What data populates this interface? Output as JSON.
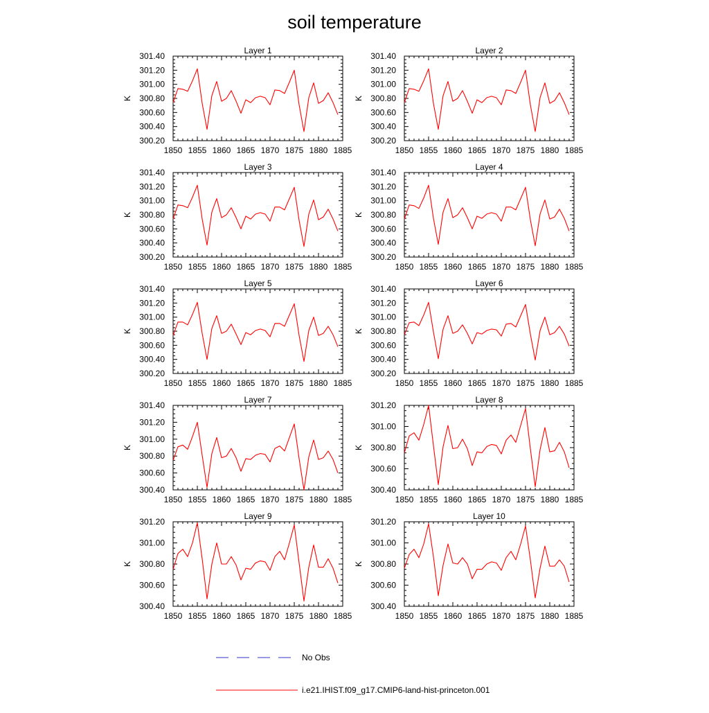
{
  "title": "soil temperature",
  "legend": {
    "obs_label": "No Obs",
    "model_label": "i.e21.IHIST.f09_g17.CMIP6-land-hist-princeton.001"
  },
  "colors": {
    "model": "#ff0000",
    "obs": "#3333cc",
    "axis": "#000000"
  },
  "chart_data": [
    {
      "type": "line",
      "title": "Layer 1",
      "xlabel": "",
      "ylabel": "K",
      "xlim": [
        1850,
        1885
      ],
      "ylim": [
        300.2,
        301.4
      ],
      "x_ticks": [
        1850,
        1855,
        1860,
        1865,
        1870,
        1875,
        1880,
        1885
      ],
      "y_ticks": [
        "300.20",
        "300.40",
        "300.60",
        "300.80",
        "301.00",
        "301.20",
        "301.40"
      ],
      "series": [
        {
          "x": [
            1850,
            1851,
            1852,
            1853,
            1854,
            1855,
            1856,
            1857,
            1858,
            1859,
            1860,
            1861,
            1862,
            1863,
            1864,
            1865,
            1866,
            1867,
            1868,
            1869,
            1870,
            1871,
            1872,
            1873,
            1874,
            1875,
            1876,
            1877,
            1878,
            1879,
            1880,
            1881,
            1882,
            1883,
            1884
          ],
          "values": [
            300.74,
            300.94,
            300.93,
            300.9,
            301.05,
            301.22,
            300.73,
            300.36,
            300.84,
            301.04,
            300.76,
            300.8,
            300.91,
            300.76,
            300.59,
            300.78,
            300.74,
            300.81,
            300.83,
            300.81,
            300.71,
            300.92,
            300.91,
            300.87,
            301.03,
            301.2,
            300.71,
            300.33,
            300.81,
            301.02,
            300.73,
            300.77,
            300.88,
            300.74,
            300.57
          ]
        }
      ]
    },
    {
      "type": "line",
      "title": "Layer 2",
      "xlabel": "",
      "ylabel": "K",
      "xlim": [
        1850,
        1885
      ],
      "ylim": [
        300.2,
        301.4
      ],
      "x_ticks": [
        1850,
        1855,
        1860,
        1865,
        1870,
        1875,
        1880,
        1885
      ],
      "y_ticks": [
        "300.20",
        "300.40",
        "300.60",
        "300.80",
        "301.00",
        "301.20",
        "301.40"
      ],
      "series": [
        {
          "x": [
            1850,
            1851,
            1852,
            1853,
            1854,
            1855,
            1856,
            1857,
            1858,
            1859,
            1860,
            1861,
            1862,
            1863,
            1864,
            1865,
            1866,
            1867,
            1868,
            1869,
            1870,
            1871,
            1872,
            1873,
            1874,
            1875,
            1876,
            1877,
            1878,
            1879,
            1880,
            1881,
            1882,
            1883,
            1884
          ],
          "values": [
            300.74,
            300.94,
            300.93,
            300.9,
            301.05,
            301.22,
            300.73,
            300.36,
            300.84,
            301.04,
            300.76,
            300.8,
            300.91,
            300.76,
            300.59,
            300.78,
            300.74,
            300.81,
            300.83,
            300.81,
            300.71,
            300.92,
            300.91,
            300.87,
            301.03,
            301.2,
            300.71,
            300.33,
            300.81,
            301.02,
            300.73,
            300.77,
            300.88,
            300.74,
            300.57
          ]
        }
      ]
    },
    {
      "type": "line",
      "title": "Layer 3",
      "xlabel": "",
      "ylabel": "K",
      "xlim": [
        1850,
        1885
      ],
      "ylim": [
        300.2,
        301.4
      ],
      "x_ticks": [
        1850,
        1855,
        1860,
        1865,
        1870,
        1875,
        1880,
        1885
      ],
      "y_ticks": [
        "300.20",
        "300.40",
        "300.60",
        "300.80",
        "301.00",
        "301.20",
        "301.40"
      ],
      "series": [
        {
          "x": [
            1850,
            1851,
            1852,
            1853,
            1854,
            1855,
            1856,
            1857,
            1858,
            1859,
            1860,
            1861,
            1862,
            1863,
            1864,
            1865,
            1866,
            1867,
            1868,
            1869,
            1870,
            1871,
            1872,
            1873,
            1874,
            1875,
            1876,
            1877,
            1878,
            1879,
            1880,
            1881,
            1882,
            1883,
            1884
          ],
          "values": [
            300.74,
            300.94,
            300.93,
            300.9,
            301.05,
            301.22,
            300.74,
            300.37,
            300.84,
            301.03,
            300.76,
            300.8,
            300.9,
            300.76,
            300.6,
            300.78,
            300.74,
            300.81,
            300.83,
            300.81,
            300.71,
            300.91,
            300.91,
            300.87,
            301.03,
            301.19,
            300.72,
            300.35,
            300.81,
            301.01,
            300.73,
            300.77,
            300.88,
            300.74,
            300.57
          ]
        }
      ]
    },
    {
      "type": "line",
      "title": "Layer 4",
      "xlabel": "",
      "ylabel": "K",
      "xlim": [
        1850,
        1885
      ],
      "ylim": [
        300.2,
        301.4
      ],
      "x_ticks": [
        1850,
        1855,
        1860,
        1865,
        1870,
        1875,
        1880,
        1885
      ],
      "y_ticks": [
        "300.20",
        "300.40",
        "300.60",
        "300.80",
        "301.00",
        "301.20",
        "301.40"
      ],
      "series": [
        {
          "x": [
            1850,
            1851,
            1852,
            1853,
            1854,
            1855,
            1856,
            1857,
            1858,
            1859,
            1860,
            1861,
            1862,
            1863,
            1864,
            1865,
            1866,
            1867,
            1868,
            1869,
            1870,
            1871,
            1872,
            1873,
            1874,
            1875,
            1876,
            1877,
            1878,
            1879,
            1880,
            1881,
            1882,
            1883,
            1884
          ],
          "values": [
            300.74,
            300.94,
            300.93,
            300.89,
            301.04,
            301.22,
            300.75,
            300.38,
            300.84,
            301.03,
            300.76,
            300.8,
            300.9,
            300.76,
            300.6,
            300.78,
            300.75,
            300.81,
            300.83,
            300.81,
            300.71,
            300.91,
            300.91,
            300.87,
            301.03,
            301.19,
            300.73,
            300.36,
            300.81,
            301.01,
            300.74,
            300.77,
            300.88,
            300.75,
            300.57
          ]
        }
      ]
    },
    {
      "type": "line",
      "title": "Layer 5",
      "xlabel": "",
      "ylabel": "K",
      "xlim": [
        1850,
        1885
      ],
      "ylim": [
        300.2,
        301.4
      ],
      "x_ticks": [
        1850,
        1855,
        1860,
        1865,
        1870,
        1875,
        1880,
        1885
      ],
      "y_ticks": [
        "300.20",
        "300.40",
        "300.60",
        "300.80",
        "301.00",
        "301.20",
        "301.40"
      ],
      "series": [
        {
          "x": [
            1850,
            1851,
            1852,
            1853,
            1854,
            1855,
            1856,
            1857,
            1858,
            1859,
            1860,
            1861,
            1862,
            1863,
            1864,
            1865,
            1866,
            1867,
            1868,
            1869,
            1870,
            1871,
            1872,
            1873,
            1874,
            1875,
            1876,
            1877,
            1878,
            1879,
            1880,
            1881,
            1882,
            1883,
            1884
          ],
          "values": [
            300.74,
            300.93,
            300.93,
            300.89,
            301.04,
            301.21,
            300.77,
            300.4,
            300.84,
            301.02,
            300.77,
            300.8,
            300.9,
            300.76,
            300.61,
            300.78,
            300.75,
            300.81,
            300.83,
            300.81,
            300.72,
            300.91,
            300.91,
            300.87,
            301.03,
            301.19,
            300.74,
            300.37,
            300.81,
            301.0,
            300.74,
            300.77,
            300.87,
            300.75,
            300.58
          ]
        }
      ]
    },
    {
      "type": "line",
      "title": "Layer 6",
      "xlabel": "",
      "ylabel": "K",
      "xlim": [
        1850,
        1885
      ],
      "ylim": [
        300.2,
        301.4
      ],
      "x_ticks": [
        1850,
        1855,
        1860,
        1865,
        1870,
        1875,
        1880,
        1885
      ],
      "y_ticks": [
        "300.20",
        "300.40",
        "300.60",
        "300.80",
        "301.00",
        "301.20",
        "301.40"
      ],
      "series": [
        {
          "x": [
            1850,
            1851,
            1852,
            1853,
            1854,
            1855,
            1856,
            1857,
            1858,
            1859,
            1860,
            1861,
            1862,
            1863,
            1864,
            1865,
            1866,
            1867,
            1868,
            1869,
            1870,
            1871,
            1872,
            1873,
            1874,
            1875,
            1876,
            1877,
            1878,
            1879,
            1880,
            1881,
            1882,
            1883,
            1884
          ],
          "values": [
            300.75,
            300.92,
            300.93,
            300.88,
            301.03,
            301.21,
            300.79,
            300.41,
            300.83,
            301.02,
            300.77,
            300.8,
            300.89,
            300.77,
            300.62,
            300.78,
            300.76,
            300.81,
            300.83,
            300.82,
            300.73,
            300.9,
            300.91,
            300.86,
            301.02,
            301.18,
            300.76,
            300.39,
            300.81,
            301.0,
            300.75,
            300.78,
            300.87,
            300.76,
            300.59
          ]
        }
      ]
    },
    {
      "type": "line",
      "title": "Layer 7",
      "xlabel": "",
      "ylabel": "K",
      "xlim": [
        1850,
        1885
      ],
      "ylim": [
        300.4,
        301.4
      ],
      "x_ticks": [
        1850,
        1855,
        1860,
        1865,
        1870,
        1875,
        1880,
        1885
      ],
      "y_ticks": [
        "300.40",
        "300.60",
        "300.80",
        "301.00",
        "301.20",
        "301.40"
      ],
      "series": [
        {
          "x": [
            1850,
            1851,
            1852,
            1853,
            1854,
            1855,
            1856,
            1857,
            1858,
            1859,
            1860,
            1861,
            1862,
            1863,
            1864,
            1865,
            1866,
            1867,
            1868,
            1869,
            1870,
            1871,
            1872,
            1873,
            1874,
            1875,
            1876,
            1877,
            1878,
            1879,
            1880,
            1881,
            1882,
            1883,
            1884
          ],
          "values": [
            300.75,
            300.91,
            300.93,
            300.88,
            301.03,
            301.2,
            300.81,
            300.43,
            300.83,
            301.02,
            300.78,
            300.8,
            300.89,
            300.78,
            300.62,
            300.77,
            300.76,
            300.81,
            300.83,
            300.82,
            300.73,
            300.89,
            300.92,
            300.86,
            301.02,
            301.18,
            300.77,
            300.4,
            300.79,
            300.99,
            300.76,
            300.78,
            300.86,
            300.76,
            300.6
          ]
        }
      ]
    },
    {
      "type": "line",
      "title": "Layer 8",
      "xlabel": "",
      "ylabel": "K",
      "xlim": [
        1850,
        1885
      ],
      "ylim": [
        300.4,
        301.2
      ],
      "x_ticks": [
        1850,
        1855,
        1860,
        1865,
        1870,
        1875,
        1880,
        1885
      ],
      "y_ticks": [
        "300.40",
        "300.60",
        "300.80",
        "301.00",
        "301.20"
      ],
      "series": [
        {
          "x": [
            1850,
            1851,
            1852,
            1853,
            1854,
            1855,
            1856,
            1857,
            1858,
            1859,
            1860,
            1861,
            1862,
            1863,
            1864,
            1865,
            1866,
            1867,
            1868,
            1869,
            1870,
            1871,
            1872,
            1873,
            1874,
            1875,
            1876,
            1877,
            1878,
            1879,
            1880,
            1881,
            1882,
            1883,
            1884
          ],
          "values": [
            300.75,
            300.91,
            300.94,
            300.87,
            301.02,
            301.2,
            300.82,
            300.45,
            300.81,
            301.01,
            300.79,
            300.8,
            300.88,
            300.79,
            300.63,
            300.76,
            300.75,
            300.81,
            300.83,
            300.82,
            300.74,
            300.87,
            300.92,
            300.85,
            301.01,
            301.17,
            300.79,
            300.43,
            300.78,
            300.99,
            300.76,
            300.77,
            300.85,
            300.76,
            300.61
          ]
        }
      ]
    },
    {
      "type": "line",
      "title": "Layer 9",
      "xlabel": "",
      "ylabel": "K",
      "xlim": [
        1850,
        1885
      ],
      "ylim": [
        300.4,
        301.2
      ],
      "x_ticks": [
        1850,
        1855,
        1860,
        1865,
        1870,
        1875,
        1880,
        1885
      ],
      "y_ticks": [
        "300.40",
        "300.60",
        "300.80",
        "301.00",
        "301.20"
      ],
      "series": [
        {
          "x": [
            1850,
            1851,
            1852,
            1853,
            1854,
            1855,
            1856,
            1857,
            1858,
            1859,
            1860,
            1861,
            1862,
            1863,
            1864,
            1865,
            1866,
            1867,
            1868,
            1869,
            1870,
            1871,
            1872,
            1873,
            1874,
            1875,
            1876,
            1877,
            1878,
            1879,
            1880,
            1881,
            1882,
            1883,
            1884
          ],
          "values": [
            300.75,
            300.9,
            300.94,
            300.87,
            301.0,
            301.19,
            300.85,
            300.47,
            300.8,
            301.0,
            300.8,
            300.8,
            300.87,
            300.79,
            300.65,
            300.76,
            300.75,
            300.81,
            300.83,
            300.82,
            300.74,
            300.87,
            300.92,
            300.84,
            301.0,
            301.17,
            300.81,
            300.45,
            300.77,
            300.98,
            300.77,
            300.77,
            300.85,
            300.76,
            300.62
          ]
        }
      ]
    },
    {
      "type": "line",
      "title": "Layer 10",
      "xlabel": "",
      "ylabel": "K",
      "xlim": [
        1850,
        1885
      ],
      "ylim": [
        300.4,
        301.2
      ],
      "x_ticks": [
        1850,
        1855,
        1860,
        1865,
        1870,
        1875,
        1880,
        1885
      ],
      "y_ticks": [
        "300.40",
        "300.60",
        "300.80",
        "301.00",
        "301.20"
      ],
      "series": [
        {
          "x": [
            1850,
            1851,
            1852,
            1853,
            1854,
            1855,
            1856,
            1857,
            1858,
            1859,
            1860,
            1861,
            1862,
            1863,
            1864,
            1865,
            1866,
            1867,
            1868,
            1869,
            1870,
            1871,
            1872,
            1873,
            1874,
            1875,
            1876,
            1877,
            1878,
            1879,
            1880,
            1881,
            1882,
            1883,
            1884
          ],
          "values": [
            300.76,
            300.89,
            300.94,
            300.86,
            300.99,
            301.18,
            300.87,
            300.5,
            300.79,
            300.99,
            300.81,
            300.8,
            300.86,
            300.8,
            300.66,
            300.75,
            300.75,
            300.8,
            300.82,
            300.81,
            300.74,
            300.86,
            300.92,
            300.84,
            300.99,
            301.16,
            300.84,
            300.48,
            300.76,
            300.97,
            300.78,
            300.78,
            300.84,
            300.78,
            300.63
          ]
        }
      ]
    }
  ]
}
